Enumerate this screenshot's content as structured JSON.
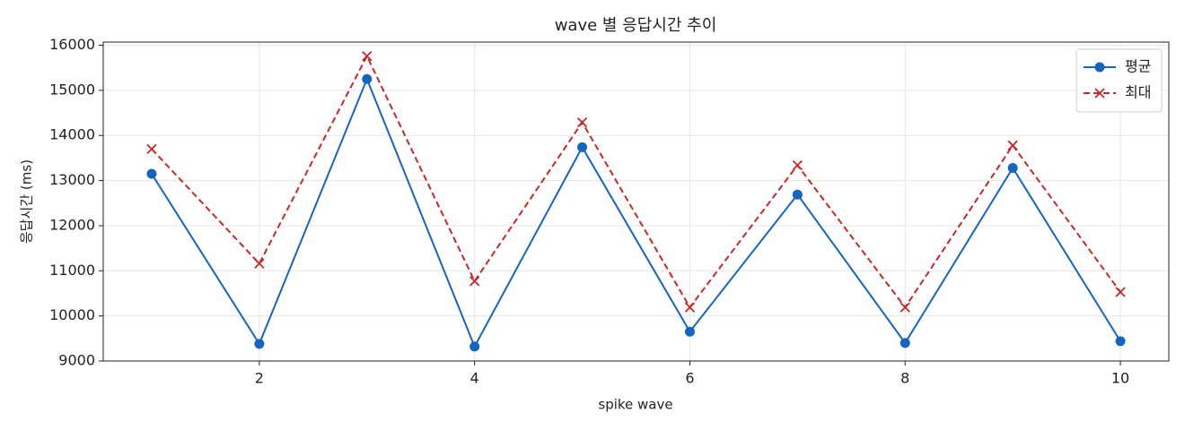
{
  "chart_data": {
    "type": "line",
    "title": "wave 별 응답시간 추이",
    "xlabel": "spike wave",
    "ylabel": "응답시간 (ms)",
    "x": [
      1,
      2,
      3,
      4,
      5,
      6,
      7,
      8,
      9,
      10
    ],
    "series": [
      {
        "name": "평균",
        "color": "#1565c0",
        "marker": "o",
        "linestyle": "solid",
        "values": [
          13150,
          9380,
          15250,
          9320,
          13740,
          9650,
          12690,
          9400,
          13280,
          9440
        ]
      },
      {
        "name": "최대",
        "color": "#c62828",
        "marker": "x",
        "linestyle": "dashed",
        "values": [
          13700,
          11160,
          15760,
          10770,
          14290,
          10190,
          13340,
          10190,
          13780,
          10530
        ]
      }
    ],
    "xlim": [
      0.55,
      10.45
    ],
    "xticks": [
      2,
      4,
      6,
      8,
      10
    ],
    "ylim": [
      9000,
      16070
    ],
    "yticks": [
      9000,
      10000,
      11000,
      12000,
      13000,
      14000,
      15000,
      16000
    ],
    "grid": true,
    "legend": "upper right"
  }
}
